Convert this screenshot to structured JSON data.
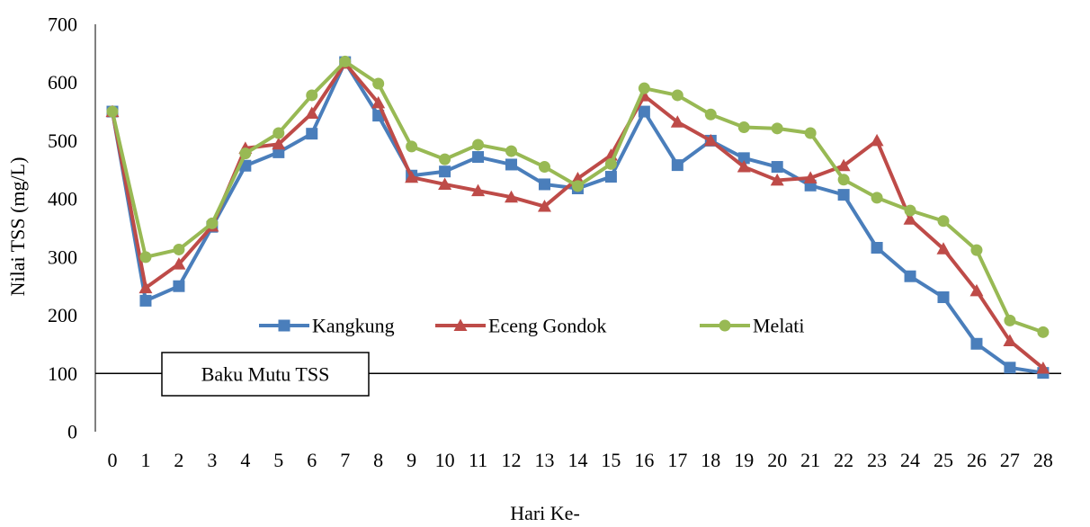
{
  "chart_data": {
    "type": "line",
    "xlabel": "Hari Ke-",
    "ylabel": "Nilai TSS (mg/L)",
    "ylim": [
      0,
      700
    ],
    "yticks": [
      0,
      100,
      200,
      300,
      400,
      500,
      600,
      700
    ],
    "x": [
      0,
      1,
      2,
      3,
      4,
      5,
      6,
      7,
      8,
      9,
      10,
      11,
      12,
      13,
      14,
      15,
      16,
      17,
      18,
      19,
      20,
      21,
      22,
      23,
      24,
      25,
      26,
      27,
      28
    ],
    "grid": false,
    "legend_position": "center-inside",
    "series": [
      {
        "name": "Kangkung",
        "color": "#4a7ebb",
        "marker": "square",
        "values": [
          550,
          225,
          250,
          352,
          457,
          480,
          512,
          635,
          543,
          440,
          447,
          472,
          459,
          425,
          418,
          438,
          550,
          458,
          500,
          470,
          455,
          423,
          407,
          316,
          267,
          231,
          151,
          110,
          101
        ]
      },
      {
        "name": "Eceng Gondok",
        "color": "#be4b48",
        "marker": "triangle",
        "values": [
          550,
          247,
          288,
          353,
          487,
          494,
          547,
          633,
          565,
          437,
          425,
          414,
          403,
          387,
          435,
          475,
          577,
          532,
          500,
          455,
          432,
          436,
          457,
          500,
          365,
          314,
          242,
          156,
          109
        ]
      },
      {
        "name": "Melati",
        "color": "#98b954",
        "marker": "circle",
        "values": [
          550,
          300,
          313,
          358,
          478,
          513,
          578,
          636,
          598,
          490,
          468,
          493,
          482,
          455,
          422,
          460,
          590,
          578,
          545,
          523,
          521,
          513,
          433,
          402,
          380,
          362,
          312,
          191,
          171
        ]
      }
    ],
    "threshold": {
      "value": 100,
      "label": "Baku Mutu TSS",
      "color": "#000000"
    }
  }
}
